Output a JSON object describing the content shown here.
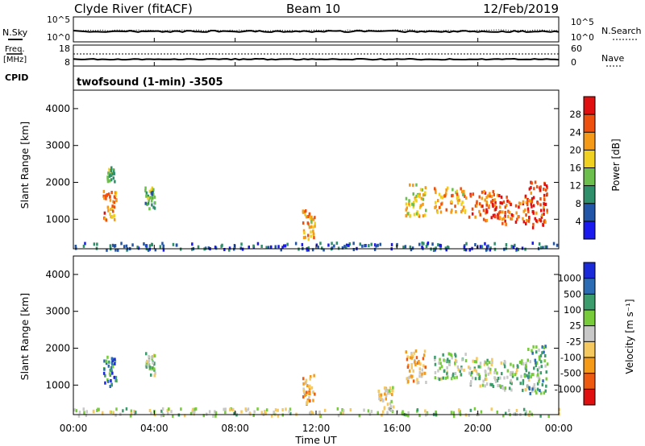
{
  "header": {
    "station": "Clyde River (fitACF)",
    "beam": "Beam 10",
    "date": "12/Feb/2019"
  },
  "noise_panel": {
    "left_label": "N.Sky",
    "right_label": "N.Search",
    "left_ticks": [
      "10^5",
      "10^0"
    ],
    "right_ticks": [
      "10^5",
      "10^0"
    ]
  },
  "freq_panel": {
    "left_label_1": "Freq.",
    "left_label_2": "[MHz]",
    "right_label": "Nave",
    "left_ticks": [
      "18",
      "8"
    ],
    "right_ticks": [
      "60",
      "0"
    ]
  },
  "cpid": {
    "label": "CPID",
    "value": "twofsound (1-min) -3505"
  },
  "time_axis": {
    "label": "Time UT",
    "ticks": [
      "00:00",
      "04:00",
      "08:00",
      "12:00",
      "16:00",
      "20:00",
      "00:00"
    ]
  },
  "power_panel": {
    "ylabel": "Slant Range [km]",
    "yticks": [
      "1000",
      "2000",
      "3000",
      "4000"
    ],
    "cbar_label": "Power [dB]",
    "cbar_ticks": [
      "4",
      "8",
      "12",
      "16",
      "20",
      "24",
      "28"
    ],
    "cbar_colors": [
      "#1a1aee",
      "#2255a8",
      "#2f8f6a",
      "#6cbf4c",
      "#f0d020",
      "#f59a18",
      "#ee5010",
      "#e01010"
    ]
  },
  "velocity_panel": {
    "ylabel": "Slant Range [km]",
    "yticks": [
      "1000",
      "2000",
      "3000",
      "4000"
    ],
    "cbar_label": "Velocity [m s⁻¹]",
    "cbar_ticks": [
      "-1000",
      "-500",
      "-100",
      "-25",
      "25",
      "100",
      "500",
      "1000"
    ],
    "cbar_colors": [
      "#e01010",
      "#ee5a10",
      "#f59a18",
      "#f5c860",
      "#c8c8c8",
      "#78cc3c",
      "#3c9c6c",
      "#2c6cb4",
      "#1a2ad8"
    ]
  },
  "chart_data": [
    {
      "type": "heatmap",
      "name": "power",
      "title": "Clyde River (fitACF) Beam 10 12/Feb/2019",
      "xlabel": "Time UT",
      "ylabel": "Slant Range [km]",
      "xlim": [
        0,
        24
      ],
      "ylim": [
        200,
        4500
      ],
      "zlabel": "Power [dB]",
      "zlim": [
        0,
        30
      ],
      "patches": [
        {
          "t": [
            1.45,
            2.1
          ],
          "r": [
            1000,
            1800
          ],
          "z": 22
        },
        {
          "t": [
            1.6,
            2.0
          ],
          "r": [
            2050,
            2450
          ],
          "z": 12
        },
        {
          "t": [
            3.5,
            4.0
          ],
          "r": [
            1300,
            1900
          ],
          "z": 12
        },
        {
          "t": [
            11.3,
            11.9
          ],
          "r": [
            500,
            1300
          ],
          "z": 20
        },
        {
          "t": [
            16.4,
            17.4
          ],
          "r": [
            1100,
            2000
          ],
          "z": 18
        },
        {
          "t": [
            17.8,
            19.4
          ],
          "r": [
            1200,
            1900
          ],
          "z": 20
        },
        {
          "t": [
            19.5,
            21.0
          ],
          "r": [
            1000,
            1800
          ],
          "z": 24
        },
        {
          "t": [
            21.0,
            22.5
          ],
          "r": [
            900,
            1700
          ],
          "z": 24
        },
        {
          "t": [
            22.4,
            23.4
          ],
          "r": [
            800,
            2100
          ],
          "z": 26
        },
        {
          "t": [
            0.0,
            24.0
          ],
          "r": [
            200,
            400
          ],
          "z": 6
        }
      ]
    },
    {
      "type": "heatmap",
      "name": "velocity",
      "xlabel": "Time UT",
      "ylabel": "Slant Range [km]",
      "xlim": [
        0,
        24
      ],
      "ylim": [
        200,
        4500
      ],
      "zlabel": "Velocity [m s⁻¹]",
      "zlim": [
        -1000,
        1000
      ],
      "patches": [
        {
          "t": [
            1.45,
            2.1
          ],
          "r": [
            1000,
            1800
          ],
          "z": 500
        },
        {
          "t": [
            3.5,
            4.0
          ],
          "r": [
            1300,
            1900
          ],
          "z": 200
        },
        {
          "t": [
            11.3,
            11.9
          ],
          "r": [
            500,
            1300
          ],
          "z": -300
        },
        {
          "t": [
            15.0,
            15.8
          ],
          "r": [
            400,
            1000
          ],
          "z": -200
        },
        {
          "t": [
            16.4,
            17.4
          ],
          "r": [
            1100,
            2000
          ],
          "z": -300
        },
        {
          "t": [
            17.8,
            19.4
          ],
          "r": [
            1200,
            1900
          ],
          "z": 150
        },
        {
          "t": [
            19.5,
            21.0
          ],
          "r": [
            1000,
            1800
          ],
          "z": 100
        },
        {
          "t": [
            21.0,
            22.5
          ],
          "r": [
            900,
            1700
          ],
          "z": 200
        },
        {
          "t": [
            22.4,
            23.4
          ],
          "r": [
            800,
            2100
          ],
          "z": 300
        },
        {
          "t": [
            0.0,
            24.0
          ],
          "r": [
            200,
            400
          ],
          "z": 50
        }
      ]
    }
  ]
}
